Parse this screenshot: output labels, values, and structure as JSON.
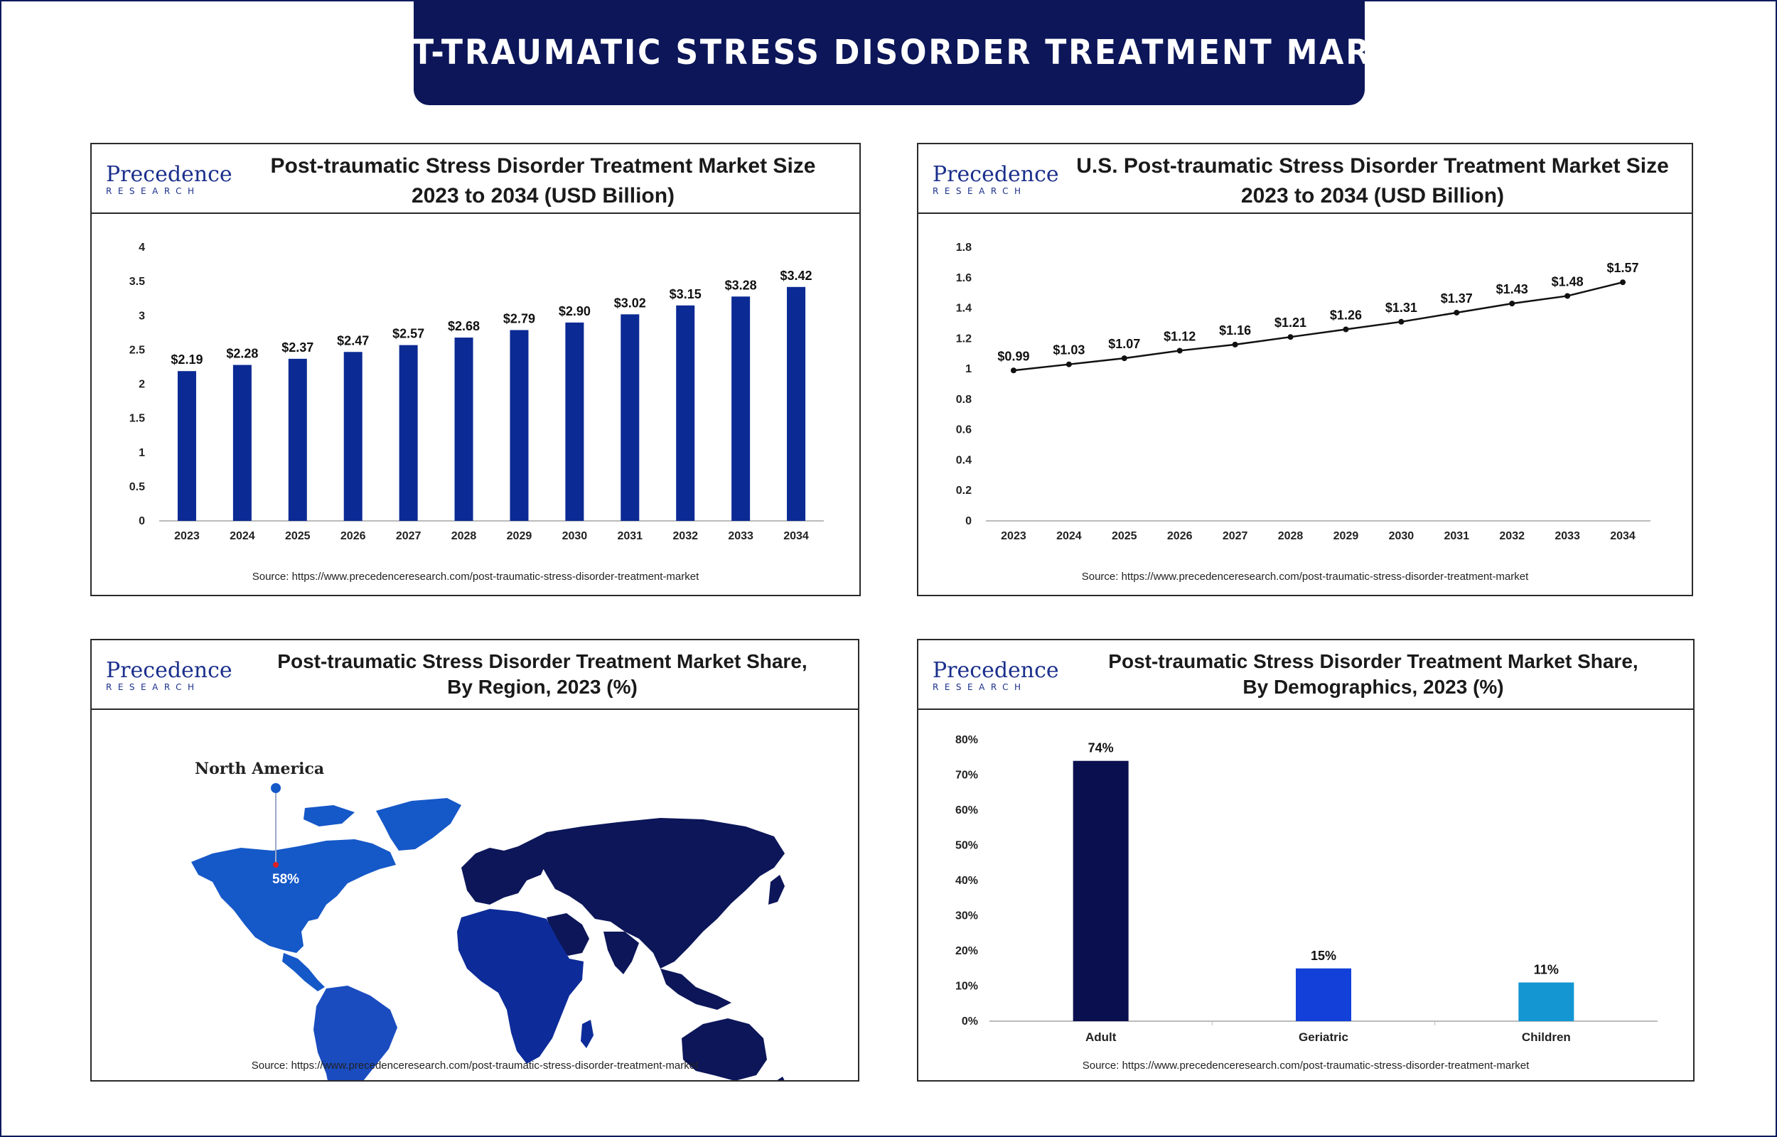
{
  "banner": {
    "title": "POST-TRAUMATIC STRESS DISORDER TREATMENT MARKET"
  },
  "logo": {
    "word": "Precedence",
    "sub": "RESEARCH"
  },
  "source_text": "Source: https://www.precedenceresearch.com/post-traumatic-stress-disorder-treatment-market",
  "colors": {
    "navy": "#0c1659",
    "bar_blue": "#0b2a94",
    "line": "#111111",
    "adult": "#0a0f4f",
    "geriatric": "#1240d8",
    "children": "#1396d2",
    "map_na": "#1558c8",
    "map_eu": "#0c1659",
    "map_af": "#0d2c9a",
    "map_sa": "#1a4cc0"
  },
  "chart_data": [
    {
      "type": "bar",
      "title": [
        "Post-traumatic Stress Disorder Treatment Market Size",
        "2023 to 2034 (USD Billion)"
      ],
      "categories": [
        "2023",
        "2024",
        "2025",
        "2026",
        "2027",
        "2028",
        "2029",
        "2030",
        "2031",
        "2032",
        "2033",
        "2034"
      ],
      "values": [
        2.19,
        2.28,
        2.37,
        2.47,
        2.57,
        2.68,
        2.79,
        2.9,
        3.02,
        3.15,
        3.28,
        3.42
      ],
      "labels": [
        "$2.19",
        "$2.28",
        "$2.37",
        "$2.47",
        "$2.57",
        "$2.68",
        "$2.79",
        "$2.90",
        "$3.02",
        "$3.15",
        "$3.28",
        "$3.42"
      ],
      "ylim": [
        0,
        4
      ],
      "yticks": [
        "0",
        "0.5",
        "1",
        "1.5",
        "2",
        "2.5",
        "3",
        "3.5",
        "4"
      ],
      "ytick_values": [
        0,
        0.5,
        1,
        1.5,
        2,
        2.5,
        3,
        3.5,
        4
      ]
    },
    {
      "type": "line",
      "title": [
        "U.S. Post-traumatic Stress Disorder Treatment Market Size",
        "2023 to 2034 (USD Billion)"
      ],
      "categories": [
        "2023",
        "2024",
        "2025",
        "2026",
        "2027",
        "2028",
        "2029",
        "2030",
        "2031",
        "2032",
        "2033",
        "2034"
      ],
      "values": [
        0.99,
        1.03,
        1.07,
        1.12,
        1.16,
        1.21,
        1.26,
        1.31,
        1.37,
        1.43,
        1.48,
        1.57
      ],
      "labels": [
        "$0.99",
        "$1.03",
        "$1.07",
        "$1.12",
        "$1.16",
        "$1.21",
        "$1.26",
        "$1.31",
        "$1.37",
        "$1.43",
        "$1.48",
        "$1.57"
      ],
      "ylim": [
        0,
        1.8
      ],
      "yticks": [
        "0",
        "0.2",
        "0.4",
        "0.6",
        "0.8",
        "1",
        "1.2",
        "1.4",
        "1.6",
        "1.8"
      ],
      "ytick_values": [
        0,
        0.2,
        0.4,
        0.6,
        0.8,
        1,
        1.2,
        1.4,
        1.6,
        1.8
      ]
    },
    {
      "type": "map",
      "title": [
        "Post-traumatic Stress Disorder Treatment Market Share,",
        "By Region, 2023 (%)"
      ],
      "regions": [
        {
          "name": "North America",
          "value": 58,
          "label": "58%"
        }
      ]
    },
    {
      "type": "bar",
      "title": [
        "Post-traumatic Stress Disorder Treatment Market Share,",
        "By Demographics, 2023 (%)"
      ],
      "categories": [
        "Adult",
        "Geriatric",
        "Children"
      ],
      "values": [
        74,
        15,
        11
      ],
      "labels": [
        "74%",
        "15%",
        "11%"
      ],
      "ylim": [
        0,
        80
      ],
      "yticks": [
        "0%",
        "10%",
        "20%",
        "30%",
        "40%",
        "50%",
        "60%",
        "70%",
        "80%"
      ],
      "ytick_values": [
        0,
        10,
        20,
        30,
        40,
        50,
        60,
        70,
        80
      ]
    }
  ]
}
